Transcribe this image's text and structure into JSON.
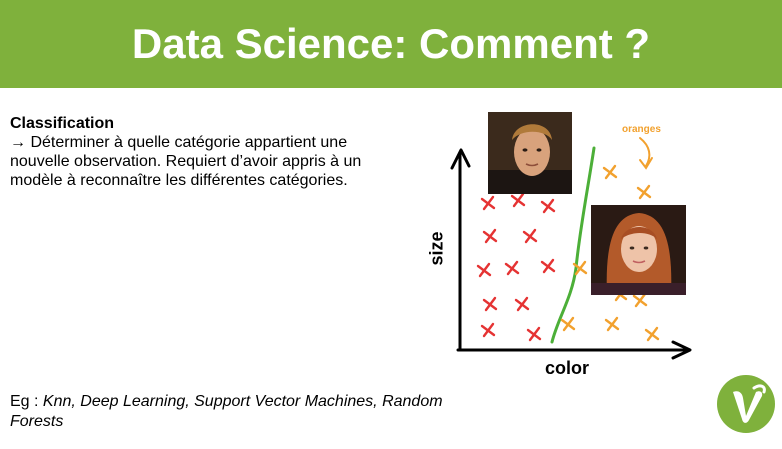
{
  "header": {
    "title": "Data Science: Comment ?",
    "background_color": "#7fb13c"
  },
  "content": {
    "heading": "Classification",
    "arrow_glyph": "→",
    "description": " Déterminer à quelle catégorie appartient une nouvelle observation.  Requiert d’avoir appris à un modèle à reconnaître les différentes catégories.",
    "example_prefix": "Eg : ",
    "example_list": "Knn, Deep Learning, Support Vector Machines, Random Forests"
  },
  "figure": {
    "y_axis_label": "size",
    "x_axis_label": "color",
    "annotation": "oranges",
    "class_a_color": "#e53333",
    "class_b_color": "#f2a12e",
    "boundary_color": "#4caf38",
    "photo_1_icon": "person-portrait-icon",
    "photo_2_icon": "person-portrait-icon"
  },
  "logo": {
    "icon": "vinted-v-logo-icon",
    "color": "#7fb13c"
  }
}
